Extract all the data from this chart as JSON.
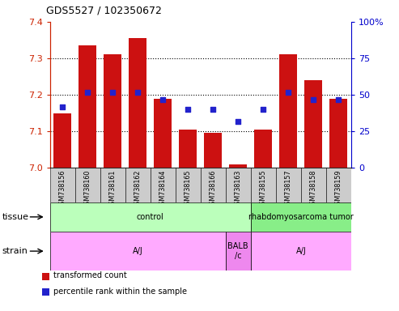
{
  "title": "GDS5527 / 102350672",
  "samples": [
    "GSM738156",
    "GSM738160",
    "GSM738161",
    "GSM738162",
    "GSM738164",
    "GSM738165",
    "GSM738166",
    "GSM738163",
    "GSM738155",
    "GSM738157",
    "GSM738158",
    "GSM738159"
  ],
  "transformed_counts": [
    7.15,
    7.335,
    7.31,
    7.355,
    7.19,
    7.105,
    7.095,
    7.01,
    7.105,
    7.31,
    7.24,
    7.19
  ],
  "percentile_ranks": [
    42,
    52,
    52,
    52,
    47,
    40,
    40,
    32,
    40,
    52,
    47,
    47
  ],
  "y_min": 7.0,
  "y_max": 7.4,
  "y_ticks": [
    7.0,
    7.1,
    7.2,
    7.3,
    7.4
  ],
  "right_y_ticks": [
    0,
    25,
    50,
    75,
    100
  ],
  "bar_color": "#CC1111",
  "dot_color": "#2222CC",
  "tissue_labels": [
    {
      "label": "control",
      "start": 0,
      "end": 8,
      "color": "#BBFFBB"
    },
    {
      "label": "rhabdomyosarcoma tumor",
      "start": 8,
      "end": 12,
      "color": "#88EE88"
    }
  ],
  "strain_labels": [
    {
      "label": "A/J",
      "start": 0,
      "end": 7,
      "color": "#FFAAFF"
    },
    {
      "label": "BALB\n/c",
      "start": 7,
      "end": 8,
      "color": "#EE88EE"
    },
    {
      "label": "A/J",
      "start": 8,
      "end": 12,
      "color": "#FFAAFF"
    }
  ],
  "legend_items": [
    {
      "color": "#CC1111",
      "label": "transformed count"
    },
    {
      "color": "#2222CC",
      "label": "percentile rank within the sample"
    }
  ],
  "left_axis_color": "#CC2200",
  "right_axis_color": "#0000CC"
}
